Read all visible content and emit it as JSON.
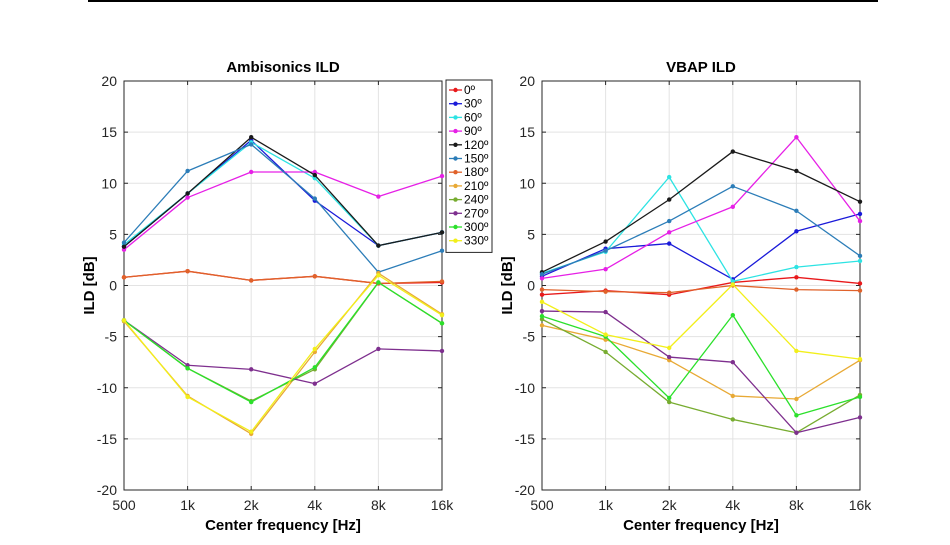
{
  "chart_data": [
    {
      "type": "line",
      "title": "Ambisonics ILD",
      "xlabel": "Center frequency [Hz]",
      "ylabel": "ILD [dB]",
      "x": [
        "500",
        "1k",
        "2k",
        "4k",
        "8k",
        "16k"
      ],
      "ylim": [
        -20,
        20
      ],
      "yticks": [
        -20,
        -15,
        -10,
        -5,
        0,
        5,
        10,
        15,
        20
      ],
      "grid": true,
      "legend": "right-top",
      "series": [
        {
          "name": "0º",
          "color": "#e8191b",
          "values": [
            0.8,
            1.4,
            0.5,
            0.9,
            0.2,
            0.3
          ]
        },
        {
          "name": "30º",
          "color": "#1a1ad9",
          "values": [
            3.8,
            9.0,
            14.2,
            8.3,
            3.9,
            5.2
          ]
        },
        {
          "name": "60º",
          "color": "#2de3e3",
          "values": [
            4.0,
            9.0,
            14.0,
            10.5,
            3.9,
            5.2
          ]
        },
        {
          "name": "90º",
          "color": "#e620e6",
          "values": [
            3.5,
            8.6,
            11.1,
            11.1,
            8.7,
            10.7
          ]
        },
        {
          "name": "120º",
          "color": "#1a1a1a",
          "values": [
            3.8,
            9.0,
            14.5,
            10.8,
            3.9,
            5.2
          ]
        },
        {
          "name": "150º",
          "color": "#2c7db8",
          "values": [
            4.2,
            11.2,
            13.8,
            8.5,
            1.3,
            3.4
          ]
        },
        {
          "name": "180º",
          "color": "#e0622a",
          "values": [
            0.8,
            1.4,
            0.5,
            0.9,
            0.2,
            0.4
          ]
        },
        {
          "name": "210º",
          "color": "#e8a935",
          "values": [
            -3.5,
            -10.8,
            -14.5,
            -6.5,
            1.2,
            -2.8
          ]
        },
        {
          "name": "240º",
          "color": "#77ac30",
          "values": [
            -3.4,
            -8.1,
            -11.3,
            -8.2,
            0.3,
            -3.7
          ]
        },
        {
          "name": "270º",
          "color": "#7e2f8e",
          "values": [
            -3.4,
            -7.8,
            -8.2,
            -9.6,
            -6.2,
            -6.4
          ]
        },
        {
          "name": "300º",
          "color": "#2be02b",
          "values": [
            -3.4,
            -8.1,
            -11.4,
            -8.0,
            0.3,
            -3.7
          ]
        },
        {
          "name": "330º",
          "color": "#f2ef1a",
          "values": [
            -3.4,
            -10.9,
            -14.3,
            -6.2,
            1.0,
            -2.9
          ]
        }
      ]
    },
    {
      "type": "line",
      "title": "VBAP ILD",
      "xlabel": "Center frequency [Hz]",
      "ylabel": "ILD [dB]",
      "x": [
        "500",
        "1k",
        "2k",
        "4k",
        "8k",
        "16k"
      ],
      "ylim": [
        -20,
        20
      ],
      "yticks": [
        -20,
        -15,
        -10,
        -5,
        0,
        5,
        10,
        15,
        20
      ],
      "grid": true,
      "series": [
        {
          "name": "0º",
          "color": "#e8191b",
          "values": [
            -0.9,
            -0.5,
            -0.9,
            0.3,
            0.8,
            0.2
          ]
        },
        {
          "name": "30º",
          "color": "#1a1ad9",
          "values": [
            0.9,
            3.6,
            4.1,
            0.6,
            5.3,
            7.0
          ]
        },
        {
          "name": "60º",
          "color": "#2de3e3",
          "values": [
            1.2,
            3.3,
            10.6,
            0.4,
            1.8,
            2.4
          ]
        },
        {
          "name": "90º",
          "color": "#e620e6",
          "values": [
            0.7,
            1.6,
            5.2,
            7.7,
            14.5,
            6.3
          ]
        },
        {
          "name": "120º",
          "color": "#1a1a1a",
          "values": [
            1.3,
            4.3,
            8.4,
            13.1,
            11.2,
            8.2
          ]
        },
        {
          "name": "150º",
          "color": "#2c7db8",
          "values": [
            1.1,
            3.4,
            6.3,
            9.7,
            7.3,
            2.9
          ]
        },
        {
          "name": "180º",
          "color": "#e0622a",
          "values": [
            -0.4,
            -0.6,
            -0.7,
            0.0,
            -0.4,
            -0.5
          ]
        },
        {
          "name": "210º",
          "color": "#e8a935",
          "values": [
            -3.9,
            -5.3,
            -7.3,
            -10.8,
            -11.1,
            -7.3
          ]
        },
        {
          "name": "240º",
          "color": "#77ac30",
          "values": [
            -3.3,
            -6.5,
            -11.4,
            -13.1,
            -14.4,
            -10.7
          ]
        },
        {
          "name": "270º",
          "color": "#7e2f8e",
          "values": [
            -2.5,
            -2.6,
            -7.0,
            -7.5,
            -14.4,
            -12.9
          ]
        },
        {
          "name": "300º",
          "color": "#2be02b",
          "values": [
            -3.0,
            -5.0,
            -11.0,
            -2.9,
            -12.7,
            -10.9
          ]
        },
        {
          "name": "330º",
          "color": "#f2ef1a",
          "values": [
            -1.6,
            -4.8,
            -6.1,
            0.1,
            -6.4,
            -7.2
          ]
        }
      ]
    }
  ]
}
